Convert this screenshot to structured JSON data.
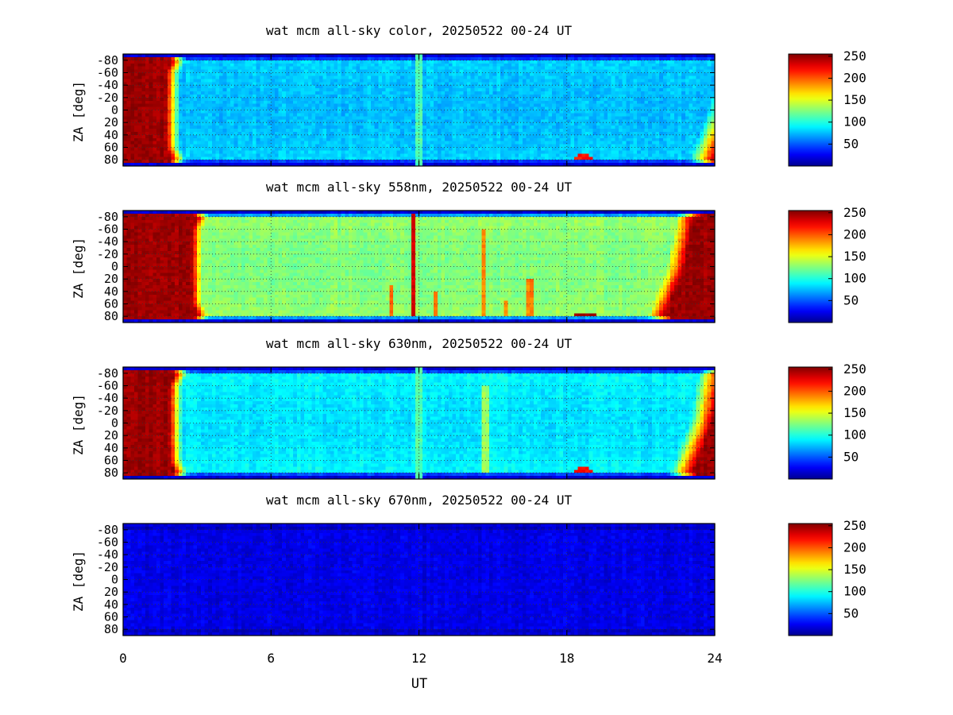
{
  "figure": {
    "xlabel": "UT",
    "ylabel": "ZA [deg]",
    "x_ticks": [
      "0",
      "6",
      "12",
      "18",
      "24"
    ],
    "y_ticks": [
      "-80",
      "-60",
      "-40",
      "-20",
      "0",
      "20",
      "40",
      "60",
      "80"
    ],
    "colorbar_ticks": [
      "50",
      "100",
      "150",
      "200",
      "250"
    ],
    "colormap": "jet",
    "colormap_stops": [
      "#00008f",
      "#0000ff",
      "#00ffff",
      "#ffff00",
      "#ff0000",
      "#800000"
    ],
    "frame_color": "#000000",
    "grid_color": "#333333"
  },
  "chart_data": [
    {
      "type": "heatmap",
      "title": "wat mcm all-sky color, 20250522 00-24 UT",
      "xlabel": "",
      "ylabel": "ZA [deg]",
      "xlim": [
        0,
        24
      ],
      "ylim": [
        -90,
        90
      ],
      "clim": [
        0,
        255
      ],
      "x_ticks": [
        0,
        6,
        12,
        18,
        24
      ],
      "y_ticks": [
        -80,
        -60,
        -40,
        -20,
        0,
        20,
        40,
        60,
        80
      ],
      "grid": true,
      "profile": {
        "base": 75,
        "dawn_end_ut": 2.3,
        "dusk_start_ut": 23.3,
        "limb_boost": 10,
        "streaks": [
          {
            "ut": 12.0,
            "value": 112,
            "za_from": -90,
            "za_to": 90
          }
        ],
        "blobs": [
          {
            "ut": 18.7,
            "za": 76,
            "value": 215
          }
        ]
      }
    },
    {
      "type": "heatmap",
      "title": "wat mcm all-sky 558nm, 20250522 00-24 UT",
      "xlabel": "",
      "ylabel": "ZA [deg]",
      "xlim": [
        0,
        24
      ],
      "ylim": [
        -90,
        90
      ],
      "clim": [
        0,
        255
      ],
      "x_ticks": [
        0,
        6,
        12,
        18,
        24
      ],
      "y_ticks": [
        -80,
        -60,
        -40,
        -20,
        0,
        20,
        40,
        60,
        80
      ],
      "grid": true,
      "profile": {
        "base": 125,
        "dawn_end_ut": 3.2,
        "dusk_start_ut": 21.6,
        "limb_boost": 12,
        "streaks": [
          {
            "ut": 11.75,
            "value": 235,
            "za_from": -85,
            "za_to": 80
          },
          {
            "ut": 10.9,
            "value": 195,
            "za_from": 30,
            "za_to": 80
          },
          {
            "ut": 12.7,
            "value": 190,
            "za_from": 40,
            "za_to": 80
          },
          {
            "ut": 14.6,
            "value": 185,
            "za_from": -60,
            "za_to": 80
          },
          {
            "ut": 15.5,
            "value": 185,
            "za_from": 55,
            "za_to": 80
          },
          {
            "ut": 16.5,
            "value": 190,
            "za_from": 20,
            "za_to": 80
          }
        ],
        "blobs": [
          {
            "ut": 18.8,
            "za": 78,
            "value": 245
          }
        ]
      }
    },
    {
      "type": "heatmap",
      "title": "wat mcm all-sky 630nm, 20250522 00-24 UT",
      "xlabel": "",
      "ylabel": "ZA [deg]",
      "xlim": [
        0,
        24
      ],
      "ylim": [
        -90,
        90
      ],
      "clim": [
        0,
        255
      ],
      "x_ticks": [
        0,
        6,
        12,
        18,
        24
      ],
      "y_ticks": [
        -80,
        -60,
        -40,
        -20,
        0,
        20,
        40,
        60,
        80
      ],
      "grid": true,
      "profile": {
        "base": 85,
        "dawn_end_ut": 2.4,
        "dusk_start_ut": 22.5,
        "limb_boost": 12,
        "streaks": [
          {
            "ut": 12.0,
            "value": 115,
            "za_from": -90,
            "za_to": 90
          },
          {
            "ut": 14.7,
            "value": 130,
            "za_from": -60,
            "za_to": 80
          }
        ],
        "blobs": [
          {
            "ut": 18.7,
            "za": 76,
            "value": 225
          }
        ]
      }
    },
    {
      "type": "heatmap",
      "title": "wat mcm all-sky 670nm, 20250522 00-24 UT",
      "xlabel": "UT",
      "ylabel": "ZA [deg]",
      "xlim": [
        0,
        24
      ],
      "ylim": [
        -90,
        90
      ],
      "clim": [
        0,
        255
      ],
      "x_ticks": [
        0,
        6,
        12,
        18,
        24
      ],
      "y_ticks": [
        -80,
        -60,
        -40,
        -20,
        0,
        20,
        40,
        60,
        80
      ],
      "grid": true,
      "profile": {
        "base": 22,
        "dawn_end_ut": 0,
        "dusk_start_ut": 24,
        "limb_boost": 0,
        "streaks": [],
        "blobs": []
      }
    }
  ]
}
